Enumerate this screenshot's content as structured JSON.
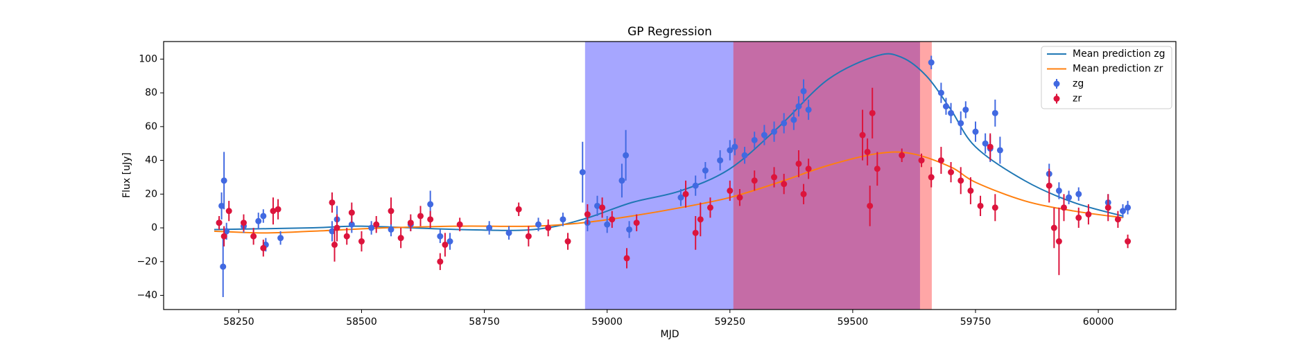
{
  "chart_data": {
    "type": "errorbar",
    "title": "GP Regression",
    "xlabel": "MJD",
    "ylabel": "Flux [uJy]",
    "xlim": [
      58097,
      60158
    ],
    "ylim": [
      -48.4,
      110.4
    ],
    "xticks": [
      58250,
      58500,
      58750,
      59000,
      59250,
      59500,
      59750,
      60000
    ],
    "yticks": [
      {
        "value": -40,
        "label": "−40"
      },
      {
        "value": -20,
        "label": "−20"
      },
      0,
      20,
      40,
      60,
      80,
      100
    ],
    "legend": "upper right",
    "spans": [
      {
        "xlim": [
          58955,
          59637
        ],
        "color": "#0000ff",
        "alpha": 0.35
      },
      {
        "xlim": [
          59257,
          59661
        ],
        "color": "#ff0000",
        "alpha": 0.35
      }
    ],
    "series": [
      {
        "name": "Mean prediction zg",
        "type": "line",
        "color": "#1f77b4",
        "x": [
          58200,
          58400,
          58500,
          58700,
          58850,
          58950,
          59050,
          59150,
          59250,
          59350,
          59450,
          59550,
          59600,
          59650,
          59700,
          59750,
          59850,
          59950,
          60050
        ],
        "values": [
          -1,
          0,
          1,
          -1,
          -1,
          5,
          15,
          22,
          35,
          60,
          88,
          102,
          101,
          90,
          70,
          48,
          28,
          15,
          7
        ]
      },
      {
        "name": "Mean prediction zr",
        "type": "line",
        "color": "#ff7f0e",
        "x": [
          58200,
          58300,
          58400,
          58550,
          58700,
          58850,
          58950,
          59050,
          59150,
          59250,
          59350,
          59450,
          59550,
          59620,
          59700,
          59750,
          59850,
          59950,
          60050
        ],
        "values": [
          -2,
          -3,
          -2,
          0,
          1,
          1,
          3,
          7,
          12,
          18,
          27,
          37,
          44,
          44,
          36,
          27,
          16,
          10,
          6
        ]
      },
      {
        "name": "zg",
        "type": "errorbar",
        "color": "#4169e1",
        "x": [
          58210,
          58215,
          58220,
          58218,
          58225,
          58260,
          58290,
          58300,
          58305,
          58335,
          58440,
          58450,
          58480,
          58520,
          58560,
          58600,
          58640,
          58660,
          58680,
          58760,
          58800,
          58860,
          58910,
          58950,
          58960,
          58980,
          59000,
          59030,
          59038,
          59045,
          59150,
          59180,
          59200,
          59230,
          59250,
          59260,
          59280,
          59300,
          59320,
          59340,
          59360,
          59380,
          59390,
          59400,
          59410,
          59660,
          59680,
          59690,
          59700,
          59720,
          59730,
          59750,
          59770,
          59780,
          59790,
          59800,
          59900,
          59920,
          59940,
          59960,
          60020,
          60050,
          60060
        ],
        "values": [
          3,
          13,
          28,
          -23,
          -2,
          1,
          4,
          7,
          -10,
          -6,
          -2,
          5,
          2,
          0,
          -1,
          2,
          14,
          -5,
          -8,
          0,
          -3,
          2,
          5,
          33,
          3,
          13,
          2,
          28,
          43,
          -1,
          18,
          25,
          34,
          40,
          46,
          48,
          43,
          52,
          55,
          57,
          62,
          64,
          72,
          81,
          70,
          98,
          80,
          72,
          68,
          62,
          70,
          57,
          50,
          47,
          68,
          46,
          32,
          22,
          18,
          20,
          15,
          10,
          12
        ],
        "errors": [
          3,
          8,
          17,
          18,
          5,
          4,
          5,
          4,
          4,
          4,
          6,
          8,
          5,
          4,
          4,
          4,
          8,
          4,
          5,
          4,
          4,
          4,
          4,
          18,
          5,
          6,
          5,
          10,
          15,
          5,
          5,
          6,
          5,
          6,
          6,
          5,
          5,
          5,
          6,
          6,
          6,
          6,
          6,
          7,
          6,
          4,
          6,
          5,
          6,
          7,
          5,
          6,
          6,
          8,
          8,
          8,
          6,
          5,
          4,
          4,
          5,
          4,
          4
        ]
      },
      {
        "name": "zr",
        "type": "errorbar",
        "color": "#dc143c",
        "x": [
          58210,
          58220,
          58230,
          58260,
          58280,
          58300,
          58320,
          58330,
          58440,
          58445,
          58450,
          58470,
          58480,
          58500,
          58530,
          58560,
          58580,
          58600,
          58620,
          58640,
          58660,
          58670,
          58700,
          58820,
          58840,
          58880,
          58920,
          58960,
          58990,
          59010,
          59040,
          59060,
          59160,
          59180,
          59190,
          59210,
          59250,
          59270,
          59300,
          59340,
          59360,
          59390,
          59400,
          59410,
          59520,
          59530,
          59535,
          59540,
          59550,
          59600,
          59640,
          59660,
          59680,
          59700,
          59720,
          59740,
          59760,
          59780,
          59790,
          59900,
          59910,
          59920,
          59930,
          59960,
          59980,
          60020,
          60040,
          60060
        ],
        "values": [
          3,
          -5,
          10,
          3,
          -5,
          -12,
          10,
          11,
          15,
          -10,
          0,
          -5,
          9,
          -8,
          2,
          10,
          -6,
          3,
          7,
          5,
          -20,
          -10,
          2,
          11,
          -5,
          0,
          -8,
          8,
          12,
          5,
          -18,
          3,
          20,
          -3,
          5,
          12,
          22,
          18,
          28,
          30,
          26,
          38,
          20,
          35,
          55,
          45,
          13,
          68,
          35,
          43,
          40,
          30,
          40,
          33,
          28,
          22,
          13,
          48,
          12,
          25,
          0,
          -8,
          12,
          6,
          8,
          12,
          5,
          -8
        ],
        "errors": [
          4,
          6,
          6,
          5,
          5,
          5,
          8,
          6,
          6,
          10,
          8,
          5,
          6,
          6,
          5,
          8,
          6,
          5,
          6,
          5,
          5,
          7,
          4,
          4,
          6,
          5,
          5,
          6,
          6,
          5,
          6,
          5,
          8,
          10,
          10,
          6,
          6,
          5,
          6,
          6,
          6,
          8,
          6,
          6,
          15,
          8,
          12,
          15,
          10,
          4,
          4,
          6,
          8,
          6,
          8,
          8,
          6,
          8,
          8,
          10,
          12,
          20,
          8,
          6,
          6,
          8,
          5,
          4
        ]
      }
    ]
  }
}
